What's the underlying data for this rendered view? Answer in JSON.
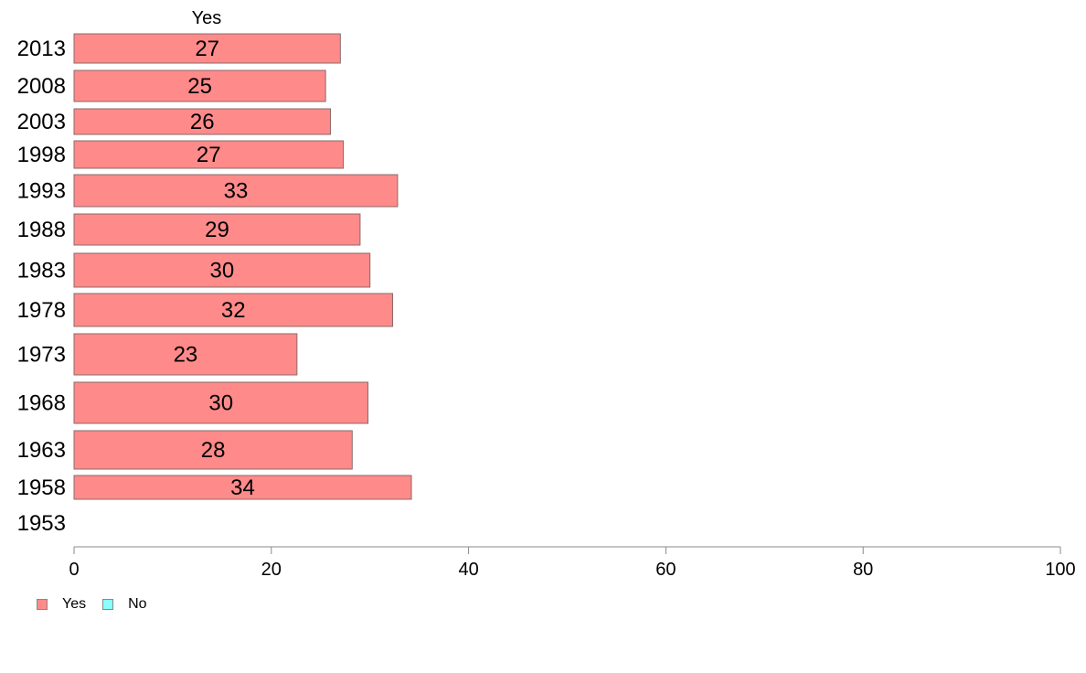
{
  "chart_data": {
    "type": "bar",
    "orientation": "horizontal",
    "series_header": "Yes",
    "categories": [
      "2013",
      "2008",
      "2003",
      "1998",
      "1993",
      "1988",
      "1983",
      "1978",
      "1973",
      "1968",
      "1963",
      "1958",
      "1953"
    ],
    "series": [
      {
        "name": "Yes",
        "color": "#ff8a8a",
        "values": [
          27,
          25.5,
          26,
          27.3,
          32.8,
          29,
          30,
          32.3,
          22.6,
          29.8,
          28.2,
          34.2,
          null
        ],
        "labels": [
          "27",
          "25",
          "26",
          "27",
          "33",
          "29",
          "30",
          "32",
          "23",
          "30",
          "28",
          "34",
          ""
        ]
      },
      {
        "name": "No",
        "color": "#8affff",
        "values": [
          null,
          null,
          null,
          null,
          null,
          null,
          null,
          null,
          null,
          null,
          null,
          null,
          null
        ]
      }
    ],
    "xlim": [
      0,
      100
    ],
    "xticks": [
      "0",
      "20",
      "40",
      "60",
      "80",
      "100"
    ],
    "grid": false,
    "legend_position": "bottom-left"
  }
}
